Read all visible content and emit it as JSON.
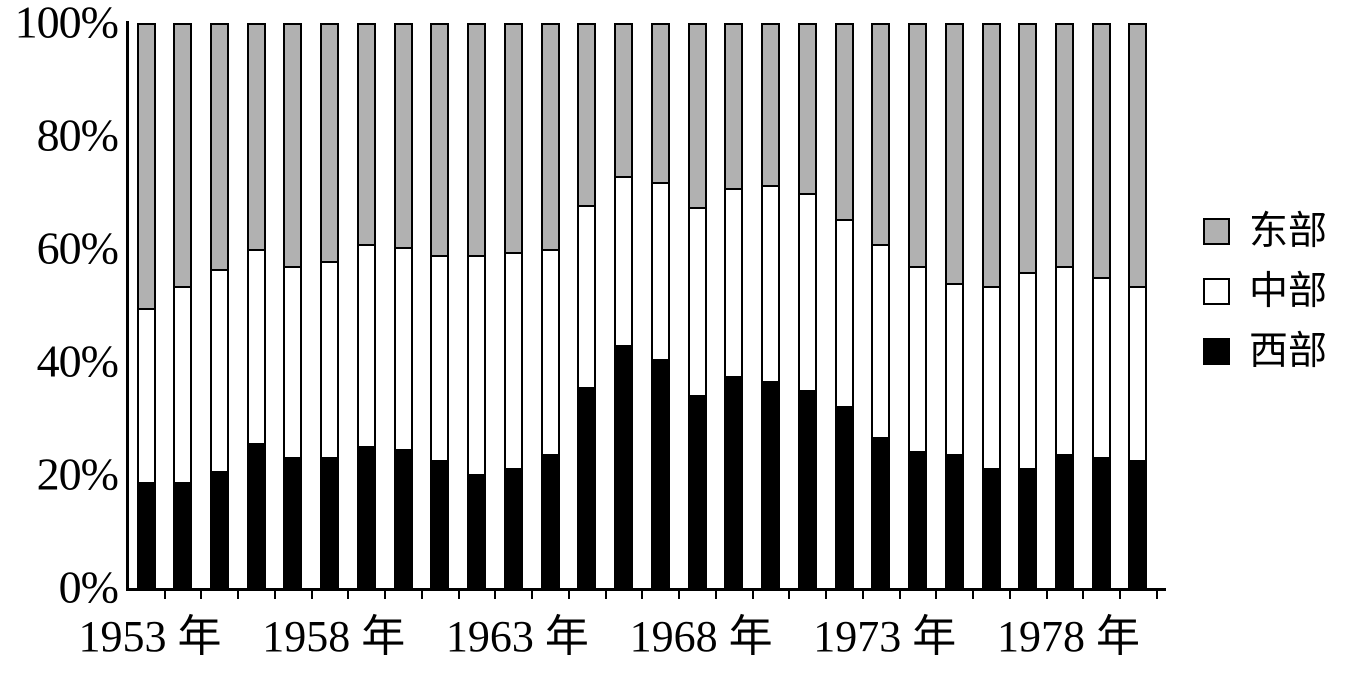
{
  "chart_data": {
    "type": "bar",
    "variant": "stacked-100-percent",
    "x": [
      "1953",
      "1954",
      "1955",
      "1956",
      "1957",
      "1958",
      "1959",
      "1960",
      "1961",
      "1962",
      "1963",
      "1964",
      "1965",
      "1966",
      "1967",
      "1968",
      "1969",
      "1970",
      "1971",
      "1972",
      "1973",
      "1974",
      "1975",
      "1976",
      "1977",
      "1978",
      "1979",
      "1980"
    ],
    "series": [
      {
        "name": "西部",
        "color": "#000000",
        "values": [
          18.5,
          18.5,
          20.5,
          25.5,
          23,
          23,
          25,
          24.5,
          22.5,
          20,
          21,
          23.5,
          35.5,
          43,
          40.5,
          34,
          37.5,
          36.5,
          35,
          32,
          26.5,
          24,
          23.5,
          21,
          21,
          23.5,
          23,
          22.5
        ]
      },
      {
        "name": "中部",
        "color": "#ffffff",
        "values": [
          31,
          35,
          36,
          34.5,
          34,
          35,
          36,
          36,
          36.5,
          39,
          38.5,
          36.5,
          32.5,
          30,
          31.5,
          33.5,
          33.5,
          35,
          35,
          33.5,
          34.5,
          33,
          30.5,
          32.5,
          35,
          33.5,
          32,
          31
        ]
      },
      {
        "name": "东部",
        "color": "#b1b1b1",
        "values": [
          50.5,
          46.5,
          43.5,
          40,
          43,
          42,
          39,
          39.5,
          41,
          41,
          40.5,
          40,
          32,
          27,
          28,
          32.5,
          29,
          28.5,
          30,
          34.5,
          39,
          43,
          46,
          46.5,
          44,
          43,
          45,
          46.5
        ]
      }
    ],
    "stack_order_bottom_to_top": [
      "西部",
      "中部",
      "东部"
    ],
    "y_tick_labels": [
      "0%",
      "20%",
      "40%",
      "60%",
      "80%",
      "100%"
    ],
    "y_tick_values": [
      0,
      20,
      40,
      60,
      80,
      100
    ],
    "ylim": [
      0,
      100
    ],
    "x_tick_labels": [
      "1953 年",
      "1958 年",
      "1963 年",
      "1968 年",
      "1973 年",
      "1978 年"
    ],
    "x_tick_years": [
      1953,
      1958,
      1963,
      1968,
      1973,
      1978
    ],
    "grid": false,
    "legend_position": "right",
    "legend": [
      {
        "label": "东部",
        "color": "#b1b1b1"
      },
      {
        "label": "中部",
        "color": "#ffffff"
      },
      {
        "label": "西部",
        "color": "#000000"
      }
    ]
  },
  "colors": {
    "east_fill": "#b1b1b1",
    "center_fill": "#ffffff",
    "west_fill": "#000000",
    "axis": "#000000",
    "background": "#ffffff"
  }
}
